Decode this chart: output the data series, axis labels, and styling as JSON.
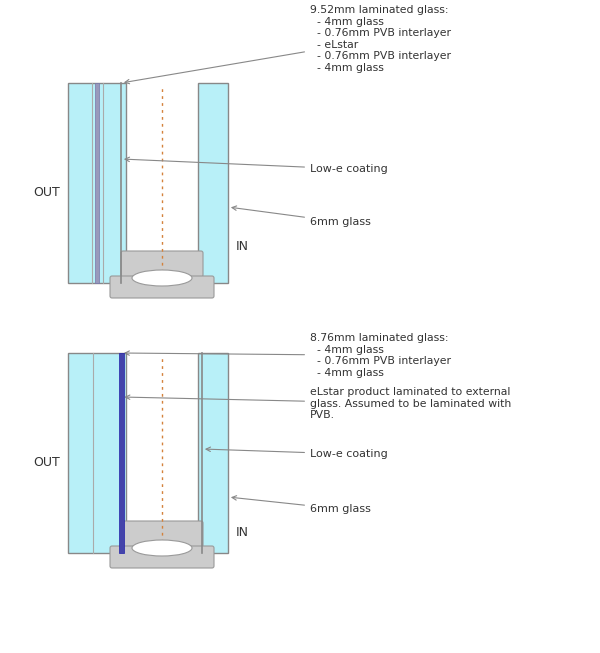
{
  "bg_color": "#ffffff",
  "glass_color": "#b8f0f8",
  "glass_edge_color": "#888888",
  "spacer_color": "#cccccc",
  "spacer_edge_color": "#999999",
  "elstar_color_top": "#9999bb",
  "elstar_color_bot": "#4444aa",
  "lowe_color": "#888888",
  "dashed_color": "#d4823c",
  "top_annotation": "9.52mm laminated glass:\n  - 4mm glass\n  - 0.76mm PVB interlayer\n  - eLstar\n  - 0.76mm PVB interlayer\n  - 4mm glass",
  "bottom_annotation": "8.76mm laminated glass:\n  - 4mm glass\n  - 0.76mm PVB interlayer\n  - 4mm glass",
  "elstar_note": "eLstar product laminated to external\nglass. Assumed to be laminated with\nPVB.",
  "lowe_label": "Low-e coating",
  "glass6_label": "6mm glass",
  "out_label": "OUT",
  "in_label": "IN",
  "figsize": [
    6.0,
    6.53
  ],
  "dpi": 100
}
